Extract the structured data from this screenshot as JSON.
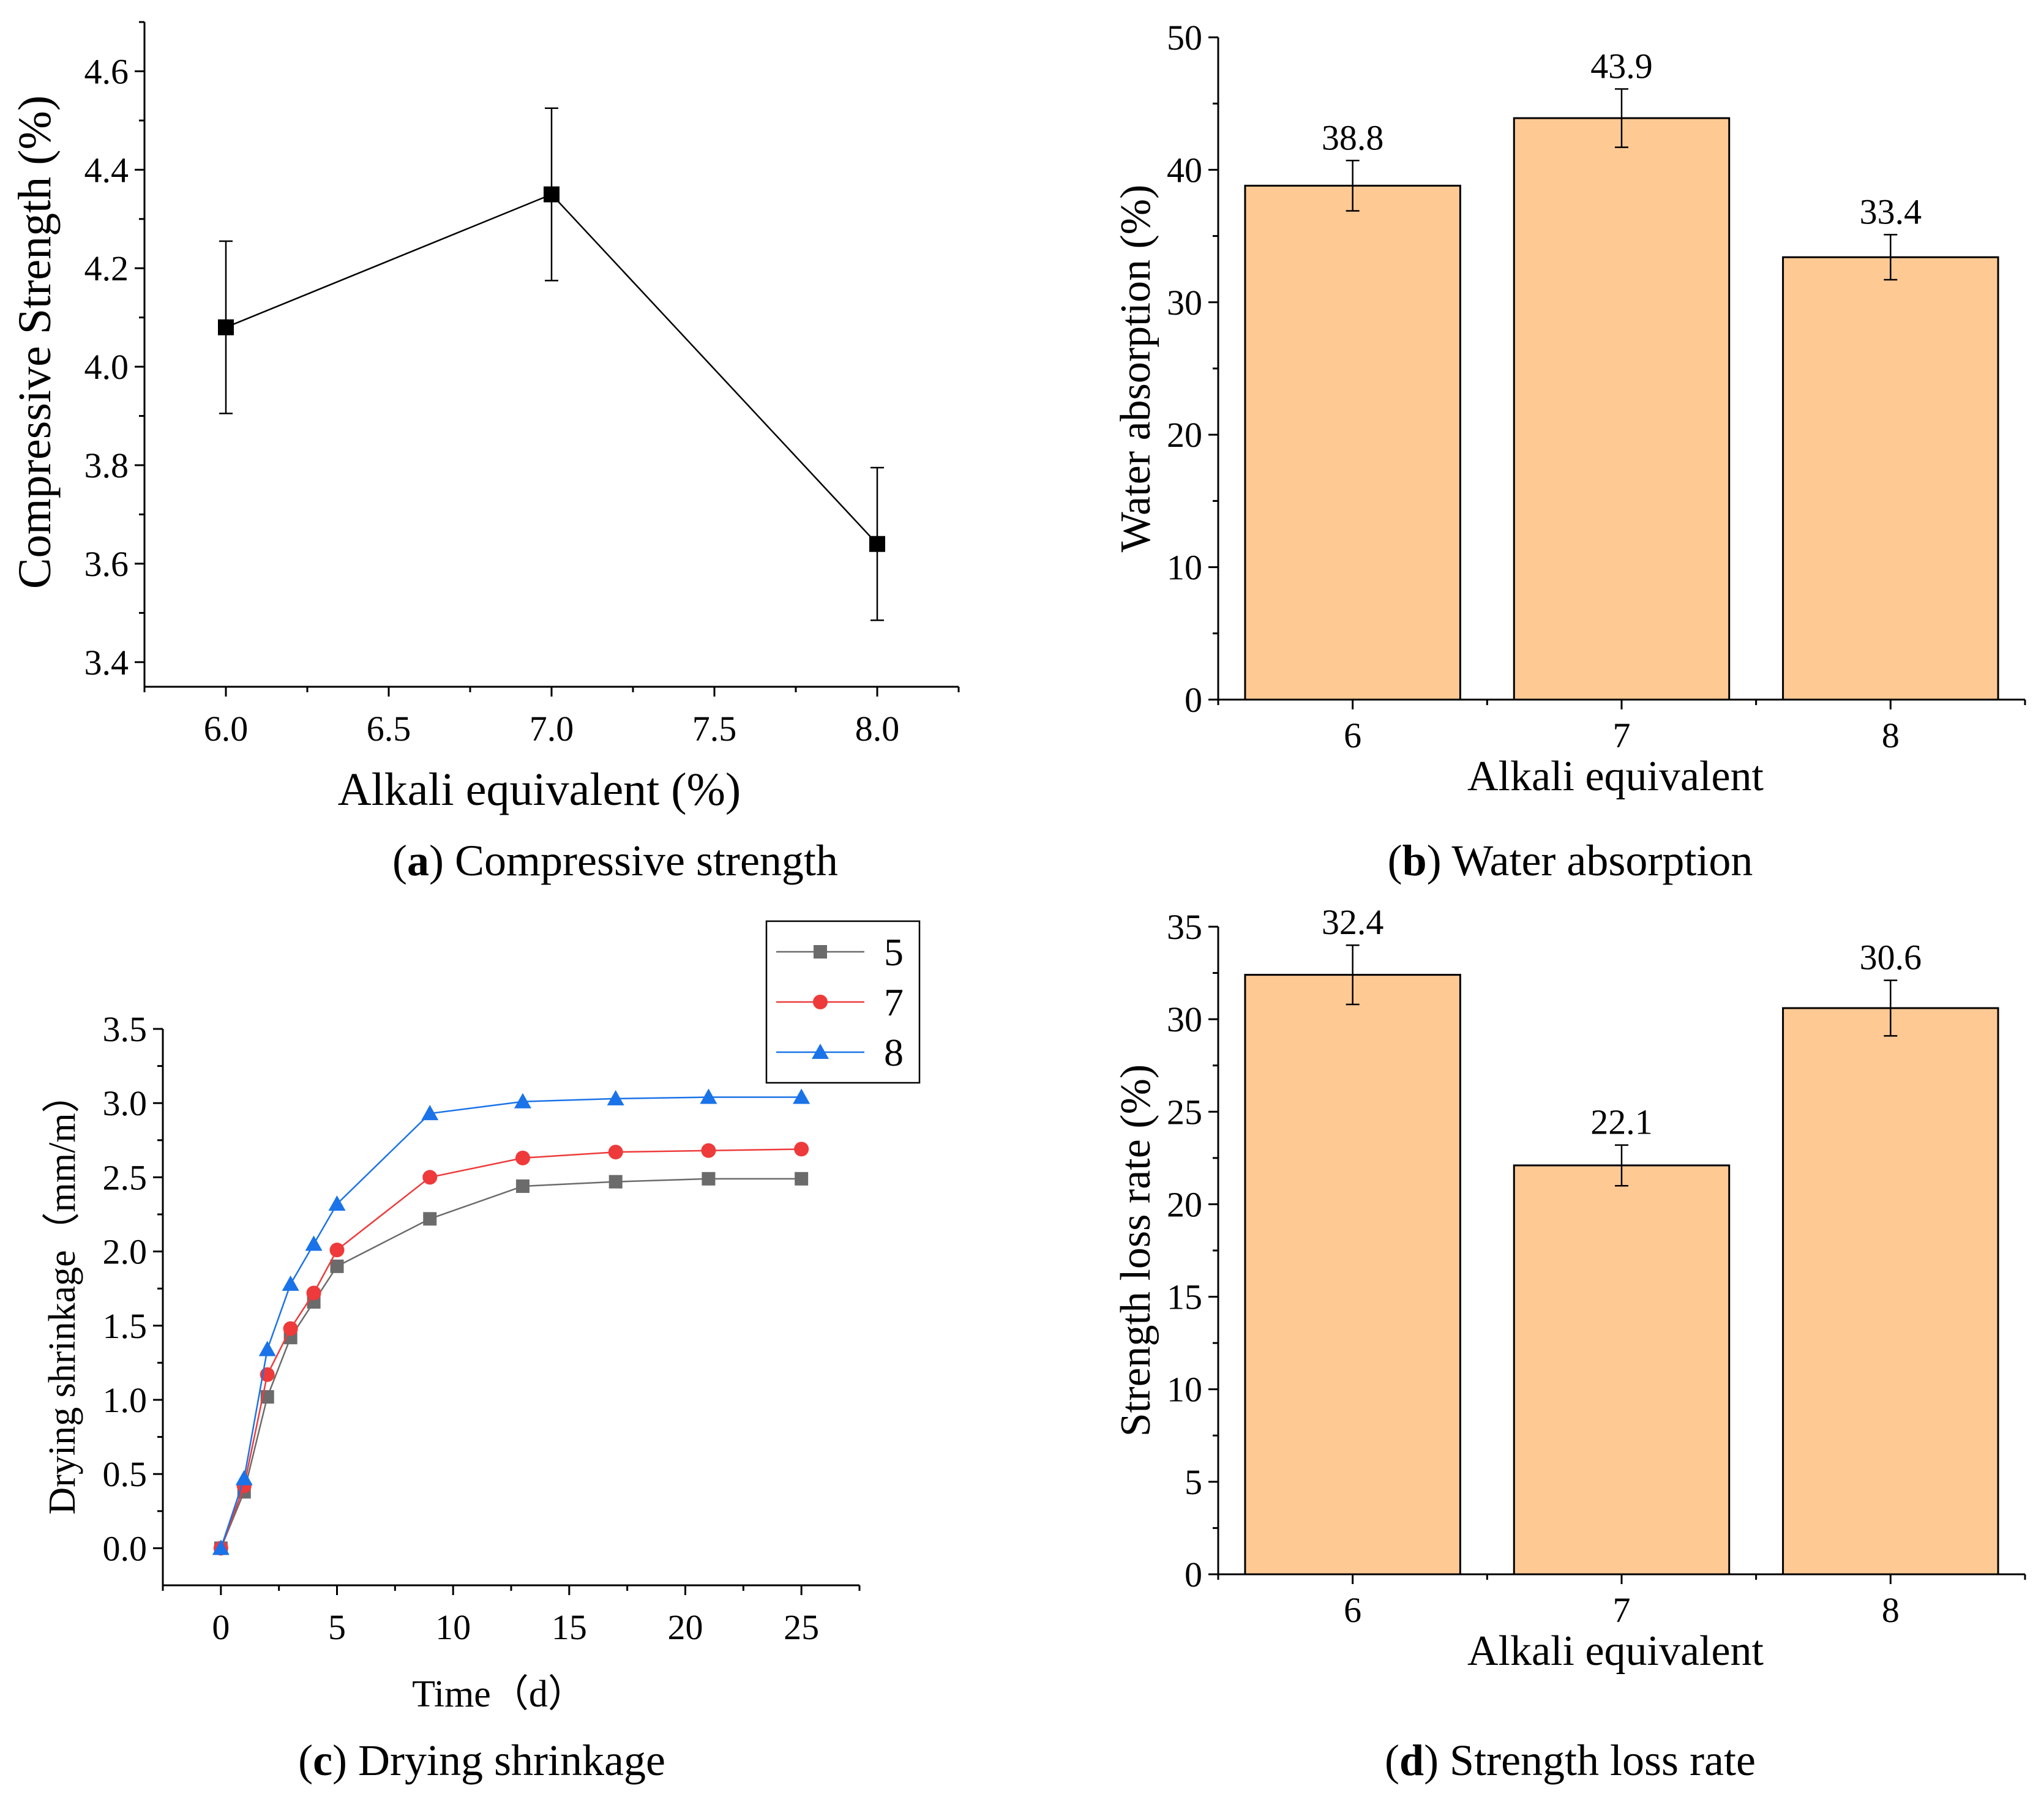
{
  "colors": {
    "bar_fill": "#FFC994",
    "bar_stroke": "#000000",
    "series_5": "#6B6B6B",
    "series_7": "#EE3A3A",
    "series_8": "#1A73E8"
  },
  "chart_data": [
    {
      "id": "a",
      "type": "line",
      "caption_letter": "a",
      "caption_text": " Compressive strength",
      "xlabel": "Alkali equivalent (%)",
      "ylabel": "Compressive Strength (%)",
      "xlim": [
        5.75,
        8.25
      ],
      "ylim": [
        3.35,
        4.7
      ],
      "xticks": [
        "6.0",
        "6.5",
        "7.0",
        "7.5",
        "8.0"
      ],
      "yticks": [
        "3.4",
        "3.6",
        "3.8",
        "4.0",
        "4.2",
        "4.4",
        "4.6"
      ],
      "points": [
        {
          "x": 6.0,
          "y": 4.08,
          "err_low": 3.905,
          "err_high": 4.255
        },
        {
          "x": 7.0,
          "y": 4.35,
          "err_low": 4.175,
          "err_high": 4.525
        },
        {
          "x": 8.0,
          "y": 3.64,
          "err_low": 3.485,
          "err_high": 3.795
        }
      ]
    },
    {
      "id": "b",
      "type": "bar",
      "caption_letter": "b",
      "caption_text": " Water absorption",
      "xlabel": "Alkali equivalent",
      "ylabel": "Water absorption (%)",
      "ylim": [
        0,
        50
      ],
      "yticks": [
        "0",
        "10",
        "20",
        "30",
        "40",
        "50"
      ],
      "categories": [
        "6",
        "7",
        "8"
      ],
      "values": [
        38.8,
        43.9,
        33.4
      ],
      "errors": [
        1.9,
        2.2,
        1.7
      ],
      "data_labels": [
        "38.8",
        "43.9",
        "33.4"
      ]
    },
    {
      "id": "c",
      "type": "line",
      "caption_letter": "c",
      "caption_text": " Drying shrinkage",
      "xlabel": "Time（d）",
      "ylabel": "Drying shrinkage（mm/m）",
      "xlim": [
        -2.5,
        27.5
      ],
      "ylim": [
        -0.25,
        3.5
      ],
      "xticks": [
        "0",
        "5",
        "10",
        "15",
        "20",
        "25"
      ],
      "yticks": [
        "0.0",
        "0.5",
        "1.0",
        "1.5",
        "2.0",
        "2.5",
        "3.0",
        "3.5"
      ],
      "x": [
        0,
        1,
        2,
        3,
        4,
        5,
        9,
        13,
        17,
        21,
        25
      ],
      "series": [
        {
          "name": "5",
          "marker": "square",
          "values": [
            0,
            0.38,
            1.02,
            1.42,
            1.66,
            1.9,
            2.22,
            2.44,
            2.47,
            2.49,
            2.49
          ]
        },
        {
          "name": "7",
          "marker": "circle",
          "values": [
            0,
            0.42,
            1.17,
            1.48,
            1.72,
            2.01,
            2.5,
            2.63,
            2.67,
            2.68,
            2.69
          ]
        },
        {
          "name": "8",
          "marker": "triangle",
          "values": [
            0,
            0.47,
            1.34,
            1.78,
            2.05,
            2.32,
            2.93,
            3.01,
            3.03,
            3.04,
            3.04
          ]
        }
      ],
      "legend": "top-right, outside plot"
    },
    {
      "id": "d",
      "type": "bar",
      "caption_letter": "d",
      "caption_text": " Strength loss rate",
      "xlabel": "Alkali equivalent",
      "ylabel": "Strength loss rate (%)",
      "ylim": [
        0,
        35
      ],
      "yticks": [
        "0",
        "5",
        "10",
        "15",
        "20",
        "25",
        "30",
        "35"
      ],
      "categories": [
        "6",
        "7",
        "8"
      ],
      "values": [
        32.4,
        22.1,
        30.6
      ],
      "errors": [
        1.6,
        1.1,
        1.5
      ],
      "data_labels": [
        "32.4",
        "22.1",
        "30.6"
      ]
    }
  ]
}
